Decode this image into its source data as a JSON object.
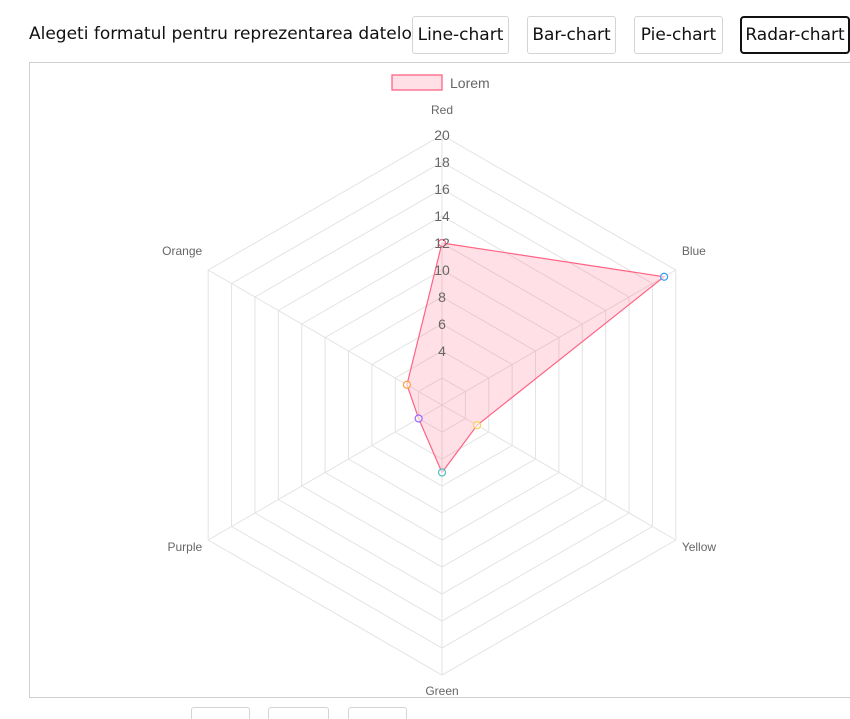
{
  "toolbar": {
    "label": "Alegeti formatul pentru reprezentarea datelor:",
    "buttons": [
      {
        "label": "Line-chart",
        "active": false
      },
      {
        "label": "Bar-chart",
        "active": false
      },
      {
        "label": "Pie-chart",
        "active": false
      },
      {
        "label": "Radar-chart",
        "active": true
      }
    ]
  },
  "chart_data": {
    "type": "radar",
    "categories": [
      "Red",
      "Blue",
      "Yellow",
      "Green",
      "Purple",
      "Orange"
    ],
    "series": [
      {
        "name": "Lorem",
        "values": [
          12,
          19,
          3,
          5,
          2,
          3
        ]
      }
    ],
    "point_colors": [
      "#ff6384",
      "#36a2eb",
      "#ffce56",
      "#4bc0c0",
      "#9966ff",
      "#ff9f40"
    ],
    "series_color": "#ff6384",
    "ticks": [
      4,
      6,
      8,
      10,
      12,
      14,
      16,
      18,
      20
    ],
    "rlim": [
      0,
      20
    ],
    "legend": "top",
    "grid": true
  }
}
